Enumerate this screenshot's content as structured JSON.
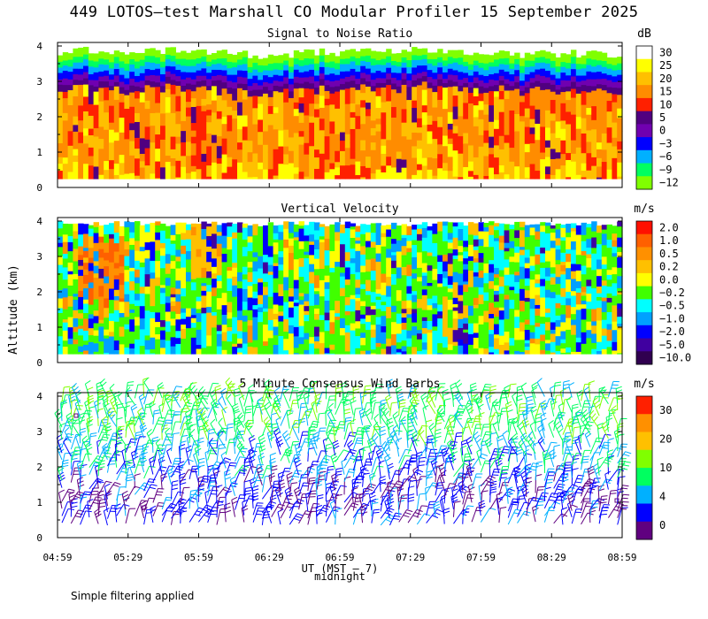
{
  "title": "449 LOTOS–test Marshall CO Modular Profiler 15 September 2025",
  "footnote": "Simple filtering applied",
  "ylabel": "Altitude (km)",
  "xlabel": "UT (MST – 7)",
  "midnight_label": "midnight",
  "chart_data": [
    {
      "type": "heatmap",
      "title": "Signal to Noise Ratio",
      "units": "dB",
      "x_ticks": [
        "04:59",
        "05:29",
        "05:59",
        "06:29",
        "06:59",
        "07:29",
        "07:59",
        "08:29",
        "08:59"
      ],
      "y_ticks": [
        0,
        1,
        2,
        3,
        4
      ],
      "ylim": [
        0,
        4.1
      ],
      "data_altitude_range_km": [
        0.25,
        4.0
      ],
      "colorbar_labels": [
        "30",
        "25",
        "20",
        "15",
        "10",
        "5",
        "0",
        "−3",
        "−6",
        "−9",
        "−12"
      ],
      "colorbar_colors": [
        "#ffffff",
        "#ffff00",
        "#ffc000",
        "#ff8c00",
        "#ff2000",
        "#500080",
        "#7000b0",
        "#0000ff",
        "#00b0ff",
        "#00ff60",
        "#80ff00"
      ],
      "profile": [
        {
          "altitude_km": 0.5,
          "snr_db": 18
        },
        {
          "altitude_km": 1.5,
          "snr_db": 17
        },
        {
          "altitude_km": 2.5,
          "snr_db": 15
        },
        {
          "altitude_km": 3.0,
          "snr_db": 3
        },
        {
          "altitude_km": 3.3,
          "snr_db": -3
        },
        {
          "altitude_km": 3.6,
          "snr_db": -8
        },
        {
          "altitude_km": 3.9,
          "snr_db": -12
        }
      ]
    },
    {
      "type": "heatmap",
      "title": "Vertical Velocity",
      "units": "m/s",
      "x_ticks": [
        "04:59",
        "05:29",
        "05:59",
        "06:29",
        "06:59",
        "07:29",
        "07:59",
        "08:29",
        "08:59"
      ],
      "y_ticks": [
        0,
        1,
        2,
        3,
        4
      ],
      "ylim": [
        0,
        4.1
      ],
      "data_altitude_range_km": [
        0.25,
        4.0
      ],
      "colorbar_labels": [
        "2.0",
        "1.0",
        "0.5",
        "0.2",
        "0.0",
        "−0.2",
        "−0.5",
        "−1.0",
        "−2.0",
        "−5.0",
        "−10.0"
      ],
      "colorbar_colors": [
        "#ff1000",
        "#ff6000",
        "#ff9000",
        "#ffc000",
        "#ffff00",
        "#40ff00",
        "#00ffff",
        "#00a0ff",
        "#0000ff",
        "#4000a0",
        "#300050"
      ]
    },
    {
      "type": "wind-barbs",
      "title": "5 Minute Consensus Wind Barbs",
      "units": "m/s",
      "x_ticks": [
        "04:59",
        "05:29",
        "05:59",
        "06:29",
        "06:59",
        "07:29",
        "07:59",
        "08:29",
        "08:59"
      ],
      "y_ticks": [
        0,
        1,
        2,
        3,
        4
      ],
      "ylim": [
        0,
        4.1
      ],
      "colorbar_labels": [
        "30",
        "20",
        "10",
        "4",
        "0"
      ],
      "colorbar_colors": [
        "#ff2000",
        "#ff9000",
        "#ffc000",
        "#80ff00",
        "#00ff60",
        "#00b0ff",
        "#0000ff",
        "#600080"
      ]
    }
  ]
}
